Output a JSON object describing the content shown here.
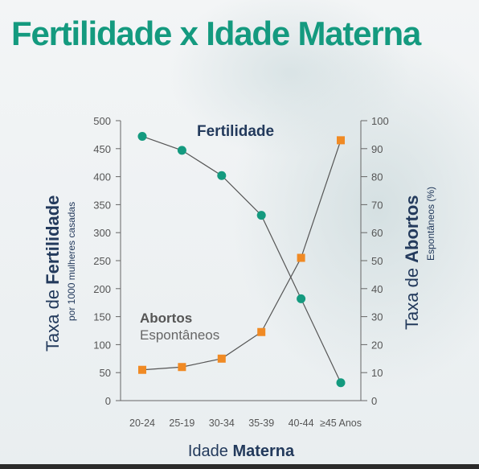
{
  "title": "Fertilidade x Idade Materna",
  "chart_data": {
    "type": "line",
    "categories": [
      "20-24",
      "25-19",
      "30-34",
      "35-39",
      "40-44",
      "≥45 Anos"
    ],
    "series": [
      {
        "name": "Fertilidade",
        "axis": "left",
        "color": "#149a7f",
        "marker": "circle",
        "values": [
          472,
          447,
          402,
          331,
          182,
          32
        ]
      },
      {
        "name": "Abortos Espontâneos",
        "axis": "right",
        "color": "#f08a24",
        "marker": "square",
        "values": [
          11,
          12,
          15,
          24.5,
          51,
          93
        ]
      }
    ],
    "labels": {
      "fertilidade": "Fertilidade",
      "abortos_line1": "Abortos",
      "abortos_line2": "Espontâneos"
    },
    "ylabel_left": {
      "prefix": "Taxa de ",
      "bold": "Fertilidade",
      "sub": "por 1000 mulheres casadas"
    },
    "ylabel_right": {
      "prefix": "Taxa de ",
      "bold": "Abortos",
      "sub": "Espontâneos (%)"
    },
    "xlabel": {
      "prefix": "Idade ",
      "bold": "Materna"
    },
    "ylim_left": [
      0,
      500
    ],
    "ylim_right": [
      0,
      100
    ],
    "yticks_left": [
      "0",
      "50",
      "100",
      "150",
      "200",
      "250",
      "300",
      "350",
      "400",
      "450",
      "500"
    ],
    "yticks_right": [
      "0",
      "10",
      "20",
      "30",
      "40",
      "50",
      "60",
      "70",
      "80",
      "90",
      "100"
    ],
    "grid": false,
    "colors": {
      "title": "#149a7f",
      "navy": "#233a5c",
      "axis": "#666666",
      "line": "#555555"
    }
  }
}
